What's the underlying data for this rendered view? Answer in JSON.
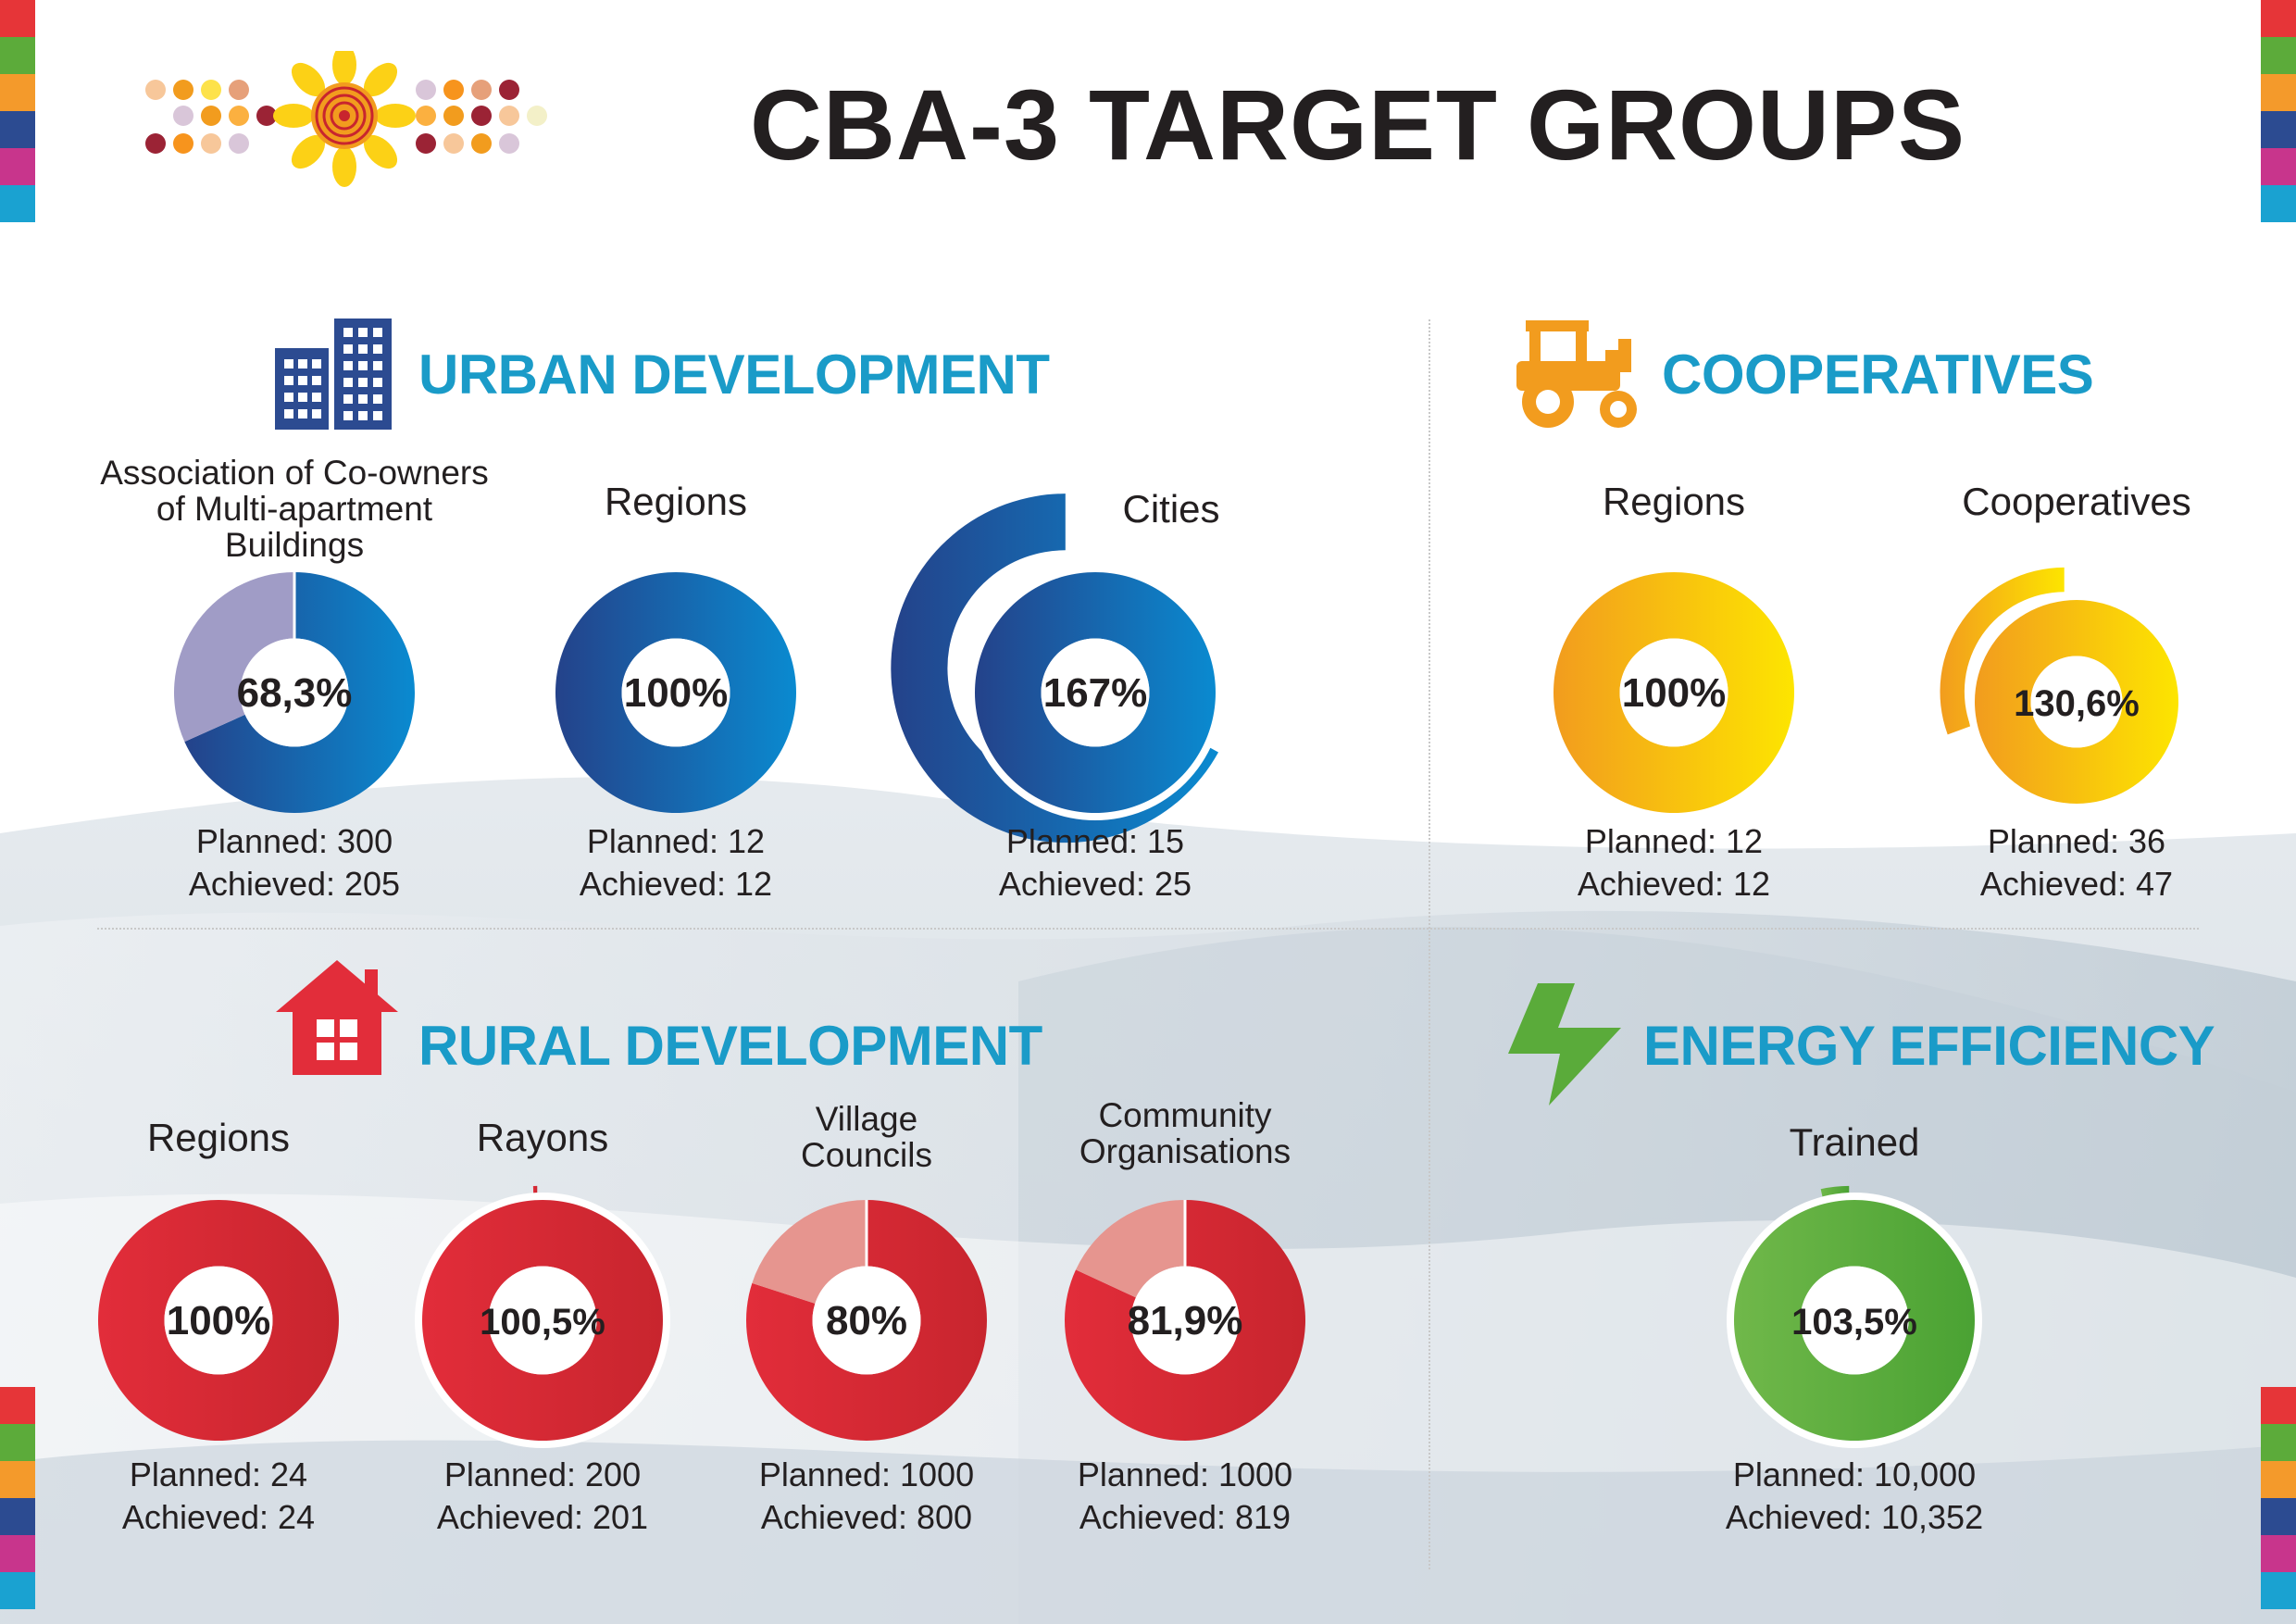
{
  "title": "CBA-3 TARGET GROUPS",
  "colors": {
    "blue_dark": "#24428a",
    "blue_light": "#0a8ad0",
    "blue_grey": "#a09cc6",
    "orange": "#f29c1e",
    "yellow": "#fde500",
    "red": "#e22d3a",
    "red_dark": "#c8252e",
    "red_light": "#e6958f",
    "green": "#4aa233",
    "green_light": "#70b84a",
    "section_title": "#1a9bc8"
  },
  "side_strip_colors": [
    "#e63538",
    "#5cab3a",
    "#f49a2b",
    "#2c4b91",
    "#c8358c",
    "#1aa2d1"
  ],
  "logo_icon": "sunflower-dots-logo",
  "sections": {
    "urban": {
      "title": "URBAN DEVELOPMENT",
      "icon": "building-icon"
    },
    "cooperatives": {
      "title": "COOPERATIVES",
      "icon": "tractor-icon"
    },
    "rural": {
      "title": "RURAL DEVELOPMENT",
      "icon": "house-icon"
    },
    "energy": {
      "title": "ENERGY EFFICIENCY",
      "icon": "lightning-icon"
    }
  },
  "chart_data": [
    {
      "type": "pie",
      "section": "URBAN DEVELOPMENT",
      "label": "Association of Co-owners of Multi-apartment Buildings",
      "label_lines": [
        "Association of Co-owners",
        "of Multi-apartment",
        "Buildings"
      ],
      "percent_label": "68,3%",
      "percent": 68.3,
      "planned_text": "Planned: 300",
      "achieved_text": "Achieved: 205",
      "planned": 300,
      "achieved": 205
    },
    {
      "type": "pie",
      "section": "URBAN DEVELOPMENT",
      "label": "Regions",
      "percent_label": "100%",
      "percent": 100,
      "planned_text": "Planned: 12",
      "achieved_text": "Achieved: 12",
      "planned": 12,
      "achieved": 12
    },
    {
      "type": "pie",
      "section": "URBAN DEVELOPMENT",
      "label": "Cities",
      "percent_label": "167%",
      "percent": 167,
      "planned_text": "Planned: 15",
      "achieved_text": "Achieved: 25",
      "planned": 15,
      "achieved": 25
    },
    {
      "type": "pie",
      "section": "COOPERATIVES",
      "label": "Regions",
      "percent_label": "100%",
      "percent": 100,
      "planned_text": "Planned: 12",
      "achieved_text": "Achieved: 12",
      "planned": 12,
      "achieved": 12
    },
    {
      "type": "pie",
      "section": "COOPERATIVES",
      "label": "Cooperatives",
      "percent_label": "130,6%",
      "percent": 130.6,
      "planned_text": "Planned: 36",
      "achieved_text": "Achieved: 47",
      "planned": 36,
      "achieved": 47
    },
    {
      "type": "pie",
      "section": "RURAL DEVELOPMENT",
      "label": "Regions",
      "percent_label": "100%",
      "percent": 100,
      "planned_text": "Planned: 24",
      "achieved_text": "Achieved: 24",
      "planned": 24,
      "achieved": 24
    },
    {
      "type": "pie",
      "section": "RURAL DEVELOPMENT",
      "label": "Rayons",
      "percent_label": "100,5%",
      "percent": 100.5,
      "planned_text": "Planned: 200",
      "achieved_text": "Achieved: 201",
      "planned": 200,
      "achieved": 201
    },
    {
      "type": "pie",
      "section": "RURAL DEVELOPMENT",
      "label": "Village Councils",
      "label_lines": [
        "Village",
        "Councils"
      ],
      "percent_label": "80%",
      "percent": 80,
      "planned_text": "Planned: 1000",
      "achieved_text": "Achieved: 800",
      "planned": 1000,
      "achieved": 800
    },
    {
      "type": "pie",
      "section": "RURAL DEVELOPMENT",
      "label": "Community Organisations",
      "label_lines": [
        "Community",
        "Organisations"
      ],
      "percent_label": "81,9%",
      "percent": 81.9,
      "planned_text": "Planned: 1000",
      "achieved_text": "Achieved: 819",
      "planned": 1000,
      "achieved": 819
    },
    {
      "type": "pie",
      "section": "ENERGY EFFICIENCY",
      "label": "Trained",
      "percent_label": "103,5%",
      "percent": 103.5,
      "planned_text": "Planned: 10,000",
      "achieved_text": "Achieved: 10,352",
      "planned": 10000,
      "achieved": 10352
    }
  ]
}
